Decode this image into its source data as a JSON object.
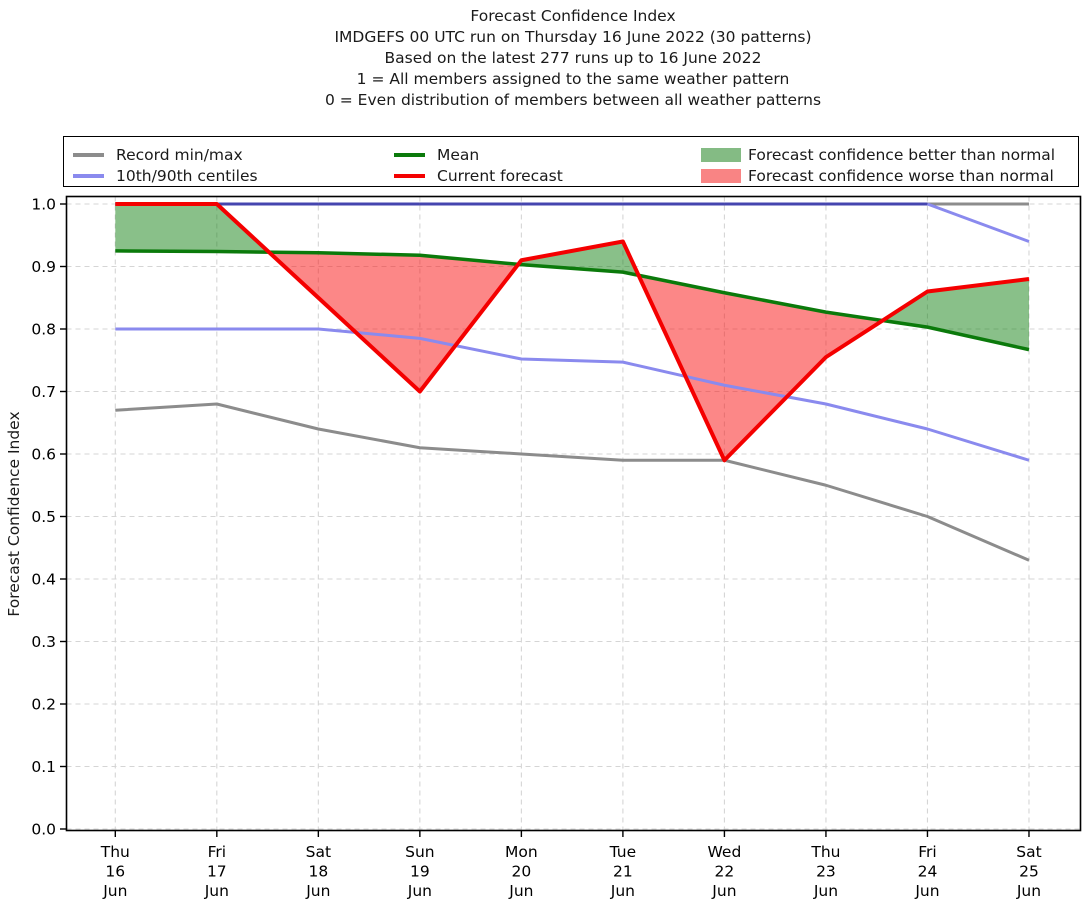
{
  "header": {
    "lines": [
      "Forecast Confidence Index",
      "IMDGEFS 00 UTC run on Thursday 16 June 2022 (30 patterns)",
      "Based on the latest 277 runs up to 16 June 2022",
      "1 = All members assigned to the same weather pattern",
      "0 = Even distribution of members between all weather patterns"
    ]
  },
  "legend": {
    "columns": [
      [
        {
          "label": "Record min/max",
          "swatch": "line",
          "color": "#8c8c8c"
        },
        {
          "label": "10th/90th centiles",
          "swatch": "line",
          "color": "#8a8aee"
        }
      ],
      [
        {
          "label": "Mean",
          "swatch": "line",
          "color": "#0b7a0b"
        },
        {
          "label": "Current forecast",
          "swatch": "line",
          "color": "#f40000"
        }
      ],
      [
        {
          "label": "Forecast confidence better than normal",
          "swatch": "patch",
          "color": "#84bb84"
        },
        {
          "label": "Forecast confidence worse than normal",
          "swatch": "patch",
          "color": "#f98484"
        }
      ]
    ]
  },
  "chart_data": {
    "type": "line",
    "title": "Forecast Confidence Index",
    "ylabel": "Forecast Confidence Index",
    "xlabel": "",
    "ylim": [
      0.0,
      1.0
    ],
    "yticks": [
      0.0,
      0.1,
      0.2,
      0.3,
      0.4,
      0.5,
      0.6,
      0.7,
      0.8,
      0.9,
      1.0
    ],
    "grid": true,
    "legend_position": "top",
    "x_labels": [
      [
        "Thu",
        "16",
        "Jun"
      ],
      [
        "Fri",
        "17",
        "Jun"
      ],
      [
        "Sat",
        "18",
        "Jun"
      ],
      [
        "Sun",
        "19",
        "Jun"
      ],
      [
        "Mon",
        "20",
        "Jun"
      ],
      [
        "Tue",
        "21",
        "Jun"
      ],
      [
        "Wed",
        "22",
        "Jun"
      ],
      [
        "Thu",
        "23",
        "Jun"
      ],
      [
        "Fri",
        "24",
        "Jun"
      ],
      [
        "Sat",
        "25",
        "Jun"
      ]
    ],
    "series": [
      {
        "name": "record_max",
        "legend": "Record min/max",
        "color": "#8c8c8c",
        "width": 3,
        "values": [
          1.0,
          1.0,
          1.0,
          1.0,
          1.0,
          1.0,
          1.0,
          1.0,
          1.0,
          1.0
        ]
      },
      {
        "name": "record_min",
        "legend": "Record min/max",
        "color": "#8c8c8c",
        "width": 3,
        "values": [
          0.67,
          0.68,
          0.64,
          0.61,
          0.6,
          0.59,
          0.59,
          0.55,
          0.5,
          0.43
        ]
      },
      {
        "name": "centile_90",
        "legend": "10th/90th centiles",
        "color": "#8a8aee",
        "width": 3,
        "values": [
          1.0,
          1.0,
          1.0,
          1.0,
          1.0,
          1.0,
          1.0,
          1.0,
          1.0,
          0.94
        ],
        "segment_colors": [
          "#4545af",
          "#4545af",
          "#4545af",
          "#4545af",
          "#4545af",
          "#4545af",
          "#4545af",
          "#4545af",
          "#8a8aee"
        ]
      },
      {
        "name": "centile_10",
        "legend": "10th/90th centiles",
        "color": "#8a8aee",
        "width": 3,
        "values": [
          0.8,
          0.8,
          0.8,
          0.785,
          0.752,
          0.747,
          0.71,
          0.68,
          0.64,
          0.59
        ]
      },
      {
        "name": "mean",
        "legend": "Mean",
        "color": "#0b7a0b",
        "width": 3.5,
        "values": [
          0.925,
          0.924,
          0.922,
          0.918,
          0.903,
          0.891,
          0.858,
          0.827,
          0.803,
          0.767
        ]
      },
      {
        "name": "current",
        "legend": "Current forecast",
        "color": "#f40000",
        "width": 4,
        "values": [
          1.0,
          1.0,
          0.85,
          0.7,
          0.91,
          0.94,
          0.59,
          0.755,
          0.86,
          0.88
        ]
      }
    ],
    "fills": {
      "between": [
        "current",
        "mean"
      ],
      "better_color": "rgba(20,130,20,0.5)",
      "worse_color": "rgba(250,25,25,0.52)",
      "better_label": "Forecast confidence better than normal",
      "worse_label": "Forecast confidence worse than normal"
    }
  }
}
